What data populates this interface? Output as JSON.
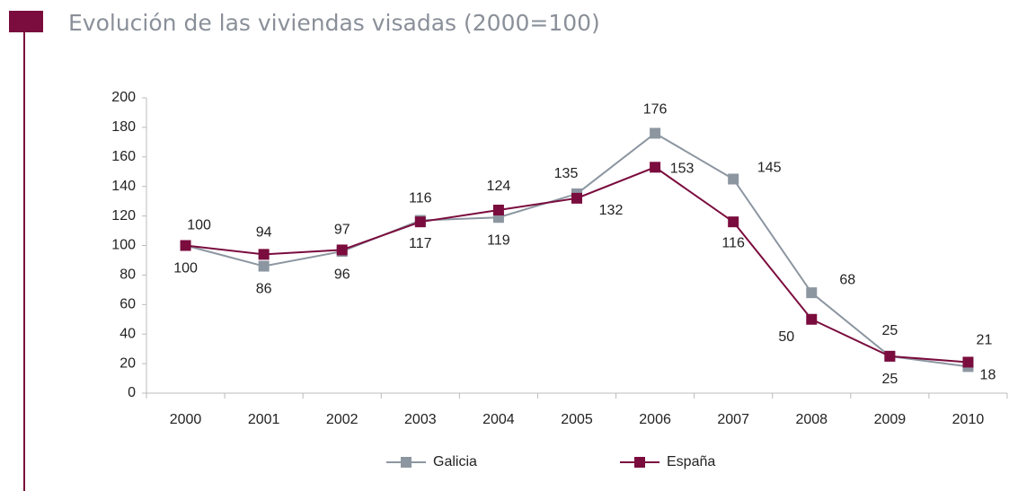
{
  "chart_data": {
    "type": "line",
    "title": "Evolución de las viviendas visadas (2000=100)",
    "categories": [
      "2000",
      "2001",
      "2002",
      "2003",
      "2004",
      "2005",
      "2006",
      "2007",
      "2008",
      "2009",
      "2010"
    ],
    "series": [
      {
        "name": "Galicia",
        "color": "#8c96a1",
        "values": [
          100,
          86,
          96,
          117,
          119,
          135,
          176,
          145,
          68,
          25,
          18
        ]
      },
      {
        "name": "España",
        "color": "#7a0c3e",
        "values": [
          100,
          94,
          97,
          116,
          124,
          132,
          153,
          116,
          50,
          25,
          21
        ]
      }
    ],
    "ylim": [
      0,
      200
    ],
    "yticks": [
      0,
      20,
      40,
      60,
      80,
      100,
      120,
      140,
      160,
      180,
      200
    ],
    "grid": false,
    "legend": "bottom"
  }
}
